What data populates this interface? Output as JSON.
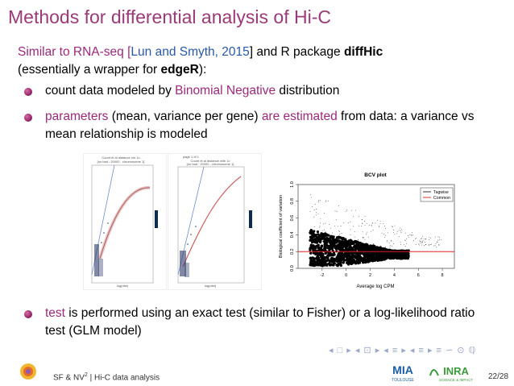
{
  "slide": {
    "title": "Methods for differential analysis of Hi-C",
    "lead_part1": "Similar to RNA-seq [",
    "lead_cite": "Lun and Smyth, 2015",
    "lead_part2": "] and R package ",
    "lead_pkg": "diffHic",
    "lead_part3": "(essentially a wrapper for ",
    "lead_pkg2": "edgeR",
    "lead_part4": "):",
    "bullet1_a": "count data modeled by ",
    "bullet1_b": "Binomial Negative",
    "bullet1_c": " distribution",
    "bullet2_a": "parameters",
    "bullet2_b": " (mean, variance per gene) ",
    "bullet2_c": "are estimated",
    "bullet2_d": " from data: a variance vs mean relationship is modeled",
    "bullet3_a": "test",
    "bullet3_b": " is performed using an exact test (similar to Fisher) or a log-likelihood ratio test (GLM model)"
  },
  "figure_left": {
    "title_line1": "Count et al distance chr 1c",
    "title_line2": "[no bad : 20000 , chromosome 1]",
    "xlabel": "log(dist)"
  },
  "figure_mid": {
    "header": "page 1 of 1",
    "title_line1": "Count et al distance with 1c",
    "title_line2": "[no bad : 20000 , chromosome 1]",
    "xlabel": "log(dist)"
  },
  "chart_data": {
    "type": "scatter",
    "title": "BCV plot",
    "xlabel": "Average log CPM",
    "ylabel": "Biological coefficient of variation",
    "xlim": [
      -4,
      9
    ],
    "ylim": [
      0,
      1.0
    ],
    "xticks": [
      "-2",
      "0",
      "2",
      "4",
      "6",
      "8"
    ],
    "yticks": [
      "0.0",
      "0.2",
      "0.4",
      "0.6",
      "0.8",
      "1.0"
    ],
    "legend": [
      "Tagwise",
      "Common"
    ],
    "legend_placement": "top-right",
    "common_value": 0.2,
    "series_colors": {
      "Tagwise": "#000000",
      "Common": "#e02020"
    }
  },
  "footer": {
    "left_text": "SF & NV",
    "superscript": "2",
    "sep": " | Hi-C data analysis",
    "page": "22/28",
    "logo_mia": "MIA",
    "logo_toulouse": "TOULOUSE",
    "logo_inra": "INRA",
    "logo_inra_sub": "SCIENCE & IMPACT"
  },
  "nav": {
    "symbols": "◂ □ ▸ ◂ ⊡ ▸ ◂ ≡ ▸ ◂ ≡ ▸ ≡ ∽ ⊙ ℚ"
  },
  "colors": {
    "title": "#9b3a78",
    "accent_purple": "#9b2a7a",
    "accent_blue": "#2a58a8",
    "common_line": "#e02020"
  }
}
